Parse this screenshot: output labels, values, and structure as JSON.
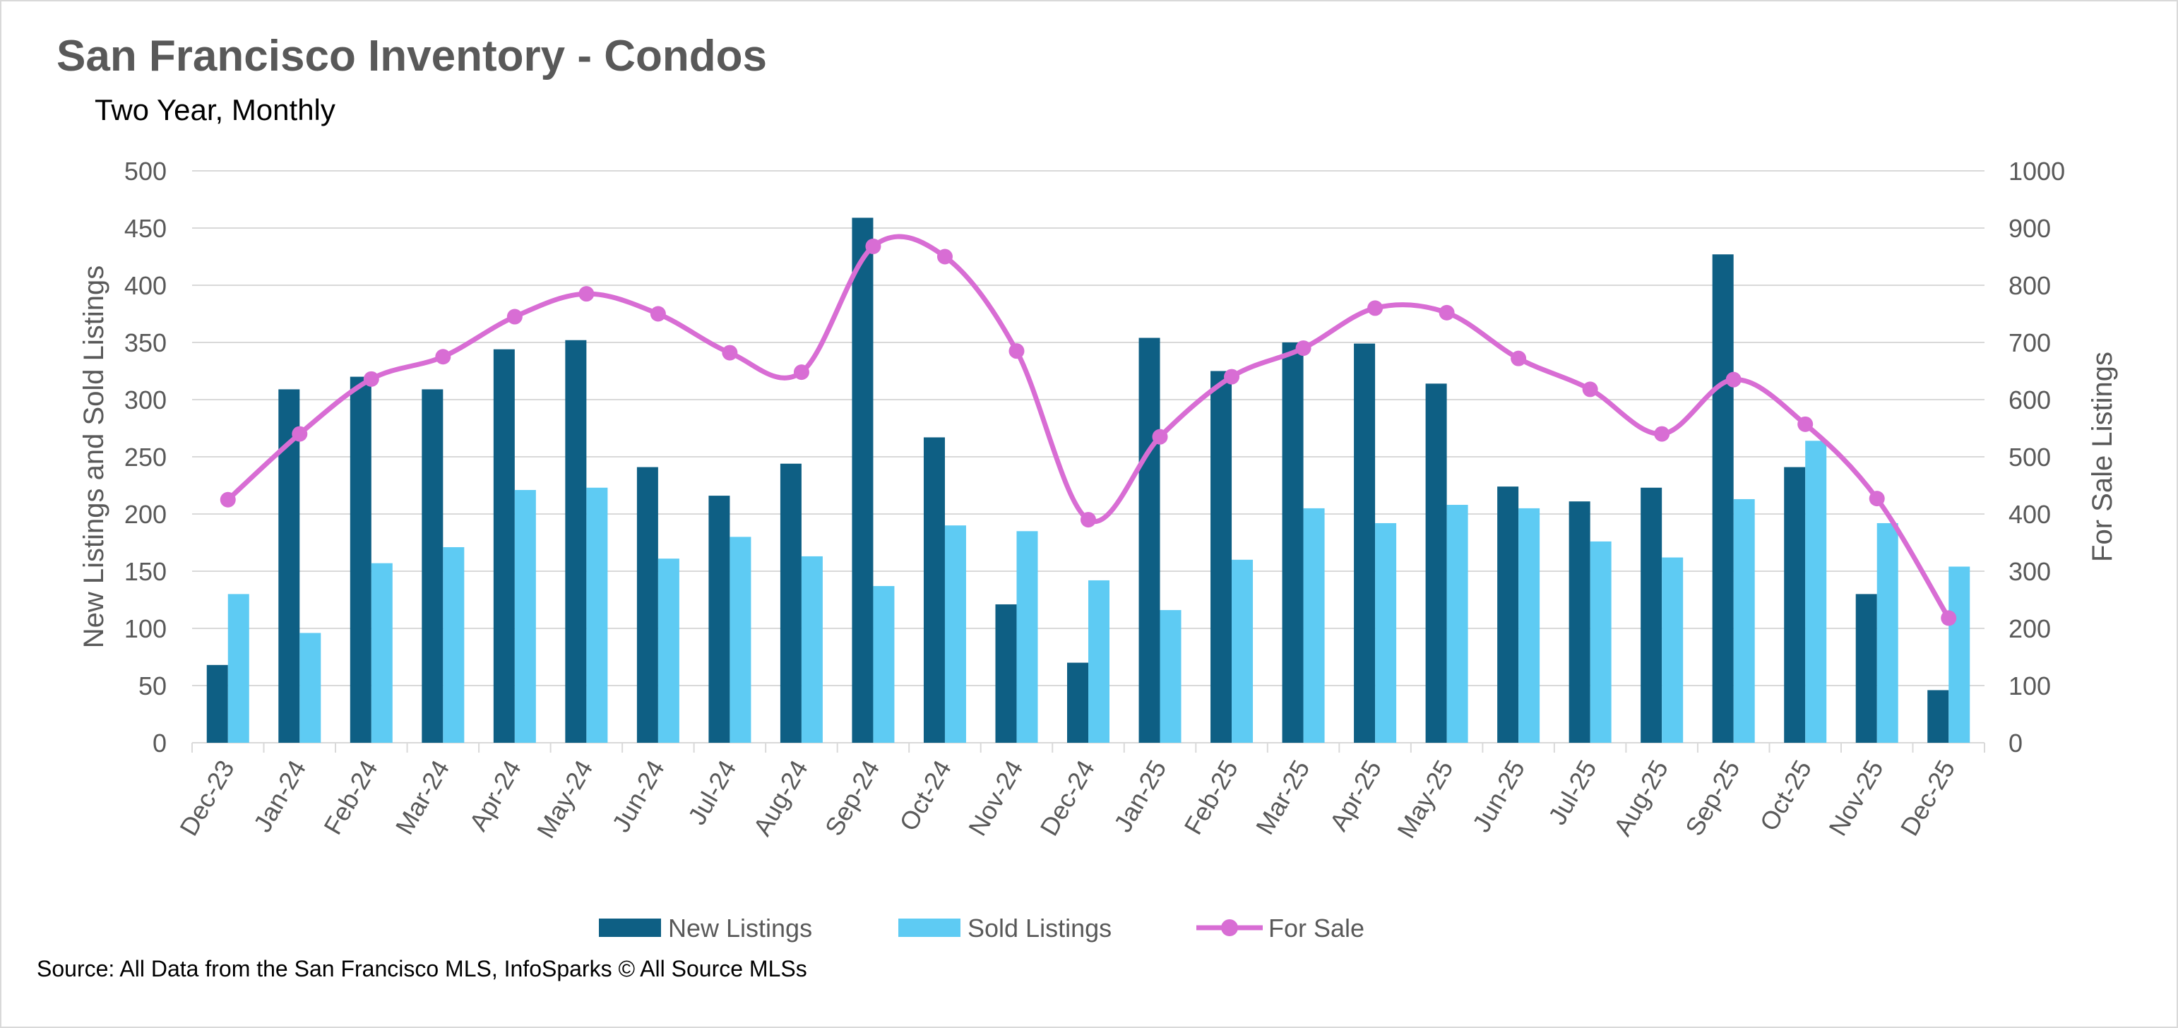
{
  "title": "San Francisco Inventory - Condos",
  "subtitle": "Two Year, Monthly",
  "source": "Source: All Data from the San Francisco MLS, InfoSparks © All Source MLSs",
  "colors": {
    "new_listings": "#0e5f84",
    "sold_listings": "#5ecbf3",
    "for_sale": "#d86dd4",
    "grid": "#d9d9d9",
    "axis_text": "#595959"
  },
  "chart_data": {
    "type": "bar",
    "title": "San Francisco Inventory - Condos",
    "subtitle": "Two Year, Monthly",
    "categories": [
      "Dec-23",
      "Jan-24",
      "Feb-24",
      "Mar-24",
      "Apr-24",
      "May-24",
      "Jun-24",
      "Jul-24",
      "Aug-24",
      "Sep-24",
      "Oct-24",
      "Nov-24",
      "Dec-24",
      "Jan-25",
      "Feb-25",
      "Mar-25",
      "Apr-25",
      "May-25",
      "Jun-25",
      "Jul-25",
      "Aug-25",
      "Sep-25",
      "Oct-25",
      "Nov-25",
      "Dec-25"
    ],
    "ylabel": "New Listings and Sold Listings",
    "y2label": "For Sale Listings",
    "ylim": [
      0,
      500
    ],
    "y2lim": [
      0,
      1000
    ],
    "yticks": [
      0,
      50,
      100,
      150,
      200,
      250,
      300,
      350,
      400,
      450,
      500
    ],
    "y2ticks": [
      0,
      100,
      200,
      300,
      400,
      500,
      600,
      700,
      800,
      900,
      1000
    ],
    "grid": true,
    "legend_position": "bottom",
    "series": [
      {
        "name": "New Listings",
        "type": "bar",
        "axis": "left",
        "values": [
          68,
          309,
          320,
          309,
          344,
          352,
          241,
          216,
          244,
          459,
          267,
          121,
          70,
          354,
          325,
          350,
          349,
          314,
          224,
          211,
          223,
          427,
          241,
          130,
          46
        ]
      },
      {
        "name": "Sold Listings",
        "type": "bar",
        "axis": "left",
        "values": [
          130,
          96,
          157,
          171,
          221,
          223,
          161,
          180,
          163,
          137,
          190,
          185,
          142,
          116,
          160,
          205,
          192,
          208,
          205,
          176,
          162,
          213,
          264,
          192,
          154
        ]
      },
      {
        "name": "For Sale",
        "type": "line",
        "axis": "right",
        "smooth": true,
        "markers": true,
        "values": [
          425,
          540,
          636,
          675,
          745,
          785,
          750,
          682,
          648,
          868,
          850,
          685,
          390,
          535,
          640,
          690,
          760,
          752,
          672,
          618,
          540,
          635,
          557,
          427,
          218
        ]
      }
    ]
  }
}
